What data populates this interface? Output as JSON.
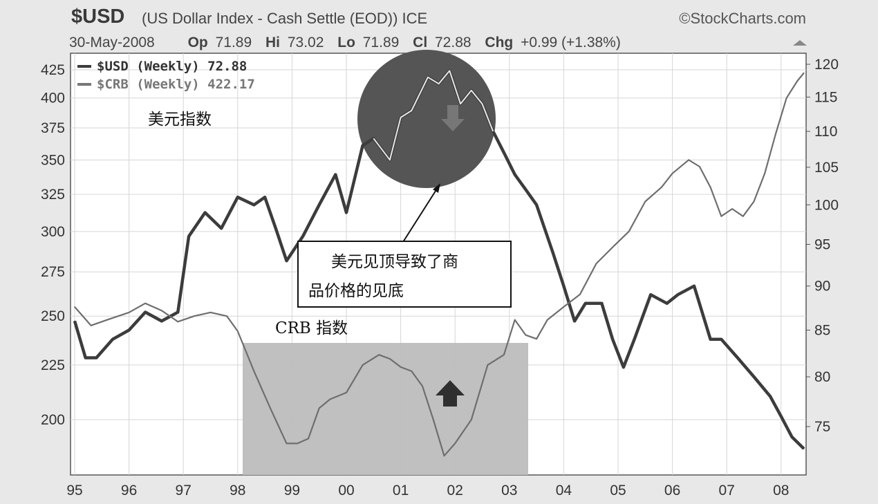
{
  "header": {
    "symbol": "$USD",
    "title": "(US Dollar Index - Cash Settle (EOD)) ICE",
    "brand": "©StockCharts.com",
    "date": "30-May-2008",
    "op_label": "Op",
    "op_value": "71.89",
    "hi_label": "Hi",
    "hi_value": "73.02",
    "lo_label": "Lo",
    "lo_value": "71.89",
    "cl_label": "Cl",
    "cl_value": "72.88",
    "chg_label": "Chg",
    "chg_value": "+0.99 (+1.38%)"
  },
  "legend": {
    "usd": "$USD (Weekly) 72.88",
    "crb": "$CRB (Weekly) 422.17"
  },
  "annotations": {
    "usd_label": "美元指数",
    "crb_label": "CRB 指数",
    "callout_line1": "美元见顶导致了商",
    "callout_line2": "品价格的见底"
  },
  "colors": {
    "usd_line": "#3c3c3c",
    "crb_line": "#6e6e6e",
    "circle": "#555555",
    "shade": "#bdbdbd",
    "plot_bg": "#ffffff"
  },
  "chart_data": {
    "type": "line",
    "x_ticks": [
      "95",
      "96",
      "97",
      "98",
      "99",
      "00",
      "01",
      "02",
      "03",
      "04",
      "05",
      "06",
      "07",
      "08"
    ],
    "left_axis": {
      "ticks": [
        200,
        225,
        250,
        275,
        300,
        325,
        350,
        375,
        400,
        425
      ],
      "scale": "log"
    },
    "right_axis": {
      "ticks": [
        75,
        80,
        85,
        90,
        95,
        100,
        105,
        110,
        115,
        120
      ],
      "scale": "log"
    },
    "grid": true,
    "legend_position": "top-left",
    "series": [
      {
        "name": "$USD (Weekly)",
        "axis": "right",
        "x": [
          1995.0,
          1995.2,
          1995.4,
          1995.7,
          1996.0,
          1996.3,
          1996.6,
          1996.9,
          1997.1,
          1997.4,
          1997.7,
          1998.0,
          1998.3,
          1998.5,
          1998.7,
          1998.9,
          1999.2,
          1999.5,
          1999.8,
          2000.0,
          2000.3,
          2000.5,
          2000.8,
          2001.0,
          2001.2,
          2001.5,
          2001.7,
          2001.9,
          2002.1,
          2002.3,
          2002.5,
          2002.7,
          2002.9,
          2003.1,
          2003.3,
          2003.5,
          2003.8,
          2004.0,
          2004.2,
          2004.4,
          2004.7,
          2004.9,
          2005.1,
          2005.3,
          2005.6,
          2005.9,
          2006.1,
          2006.4,
          2006.7,
          2006.9,
          2007.2,
          2007.5,
          2007.8,
          2008.0,
          2008.2,
          2008.42
        ],
        "values": [
          86,
          82,
          82,
          84,
          85,
          87,
          86,
          87,
          96,
          99,
          97,
          101,
          100,
          101,
          97,
          93,
          96,
          100,
          104,
          99,
          108,
          109,
          106,
          112,
          113,
          118,
          117,
          119,
          114,
          116,
          114,
          110,
          107,
          104,
          102,
          100,
          94,
          90,
          86,
          88,
          88,
          84,
          81,
          84,
          89,
          88,
          89,
          90,
          84,
          84,
          82,
          80,
          78,
          76,
          74,
          72.88
        ]
      },
      {
        "name": "$CRB (Weekly)",
        "axis": "left",
        "x": [
          1995.0,
          1995.3,
          1995.6,
          1996.0,
          1996.3,
          1996.6,
          1996.9,
          1997.2,
          1997.5,
          1997.8,
          1998.0,
          1998.3,
          1998.6,
          1998.9,
          1999.1,
          1999.3,
          1999.5,
          1999.7,
          2000.0,
          2000.3,
          2000.6,
          2000.8,
          2001.0,
          2001.2,
          2001.4,
          2001.6,
          2001.8,
          2002.0,
          2002.3,
          2002.6,
          2002.9,
          2003.1,
          2003.3,
          2003.5,
          2003.7,
          2004.0,
          2004.3,
          2004.6,
          2004.9,
          2005.2,
          2005.5,
          2005.8,
          2006.0,
          2006.3,
          2006.5,
          2006.7,
          2006.9,
          2007.1,
          2007.3,
          2007.5,
          2007.7,
          2007.9,
          2008.1,
          2008.3,
          2008.42
        ],
        "values": [
          255,
          245,
          248,
          252,
          257,
          253,
          247,
          250,
          252,
          250,
          242,
          222,
          205,
          190,
          190,
          192,
          205,
          209,
          212,
          225,
          230,
          228,
          224,
          222,
          215,
          200,
          185,
          190,
          200,
          225,
          230,
          248,
          240,
          238,
          248,
          255,
          262,
          280,
          290,
          300,
          320,
          330,
          340,
          350,
          345,
          330,
          310,
          315,
          310,
          320,
          340,
          370,
          400,
          415,
          422.17
        ]
      }
    ]
  }
}
